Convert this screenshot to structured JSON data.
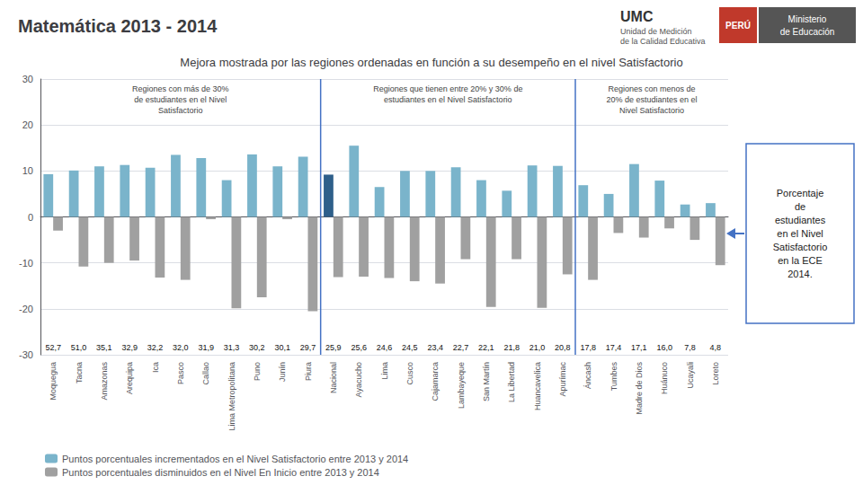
{
  "chart_data": {
    "type": "bar",
    "title": "Matemática 2013 - 2014",
    "subtitle": "Mejora mostrada por las regiones ordenadas en función a su desempeño en el nivel Satisfactorio",
    "header_texts": [
      "UMC",
      "Unidad de Medición\nde la Calidad Educativa",
      "PERÚ",
      "Ministerio",
      "de Educación"
    ],
    "annotation": "Porcentaje\nde\nestudiantes\nen el Nivel\nSatisfactorio\nen la ECE\n2014.",
    "categories": [
      "Moquegua",
      "Tacna",
      "Amazonas",
      "Arequipa",
      "Ica",
      "Pasco",
      "Callao",
      "Lima Metropolitana",
      "Puno",
      "Junín",
      "Piura",
      "Nacional",
      "Ayacucho",
      "Lima",
      "Cusco",
      "Cajamarca",
      "Lambayeque",
      "San Martín",
      "La Libertad",
      "Huancavelica",
      "Apurímac",
      "Áncash",
      "Tumbes",
      "Madre de Dios",
      "Huánuco",
      "Ucayali",
      "Loreto"
    ],
    "series": [
      {
        "name": "Puntos porcentuales incrementados en el Nivel Satisfactorio entre 2013 y 2014",
        "color": "#7ab4cb",
        "colors": [
          "#7ab4cb",
          "#7ab4cb",
          "#7ab4cb",
          "#7ab4cb",
          "#7ab4cb",
          "#7ab4cb",
          "#7ab4cb",
          "#7ab4cb",
          "#7ab4cb",
          "#7ab4cb",
          "#7ab4cb",
          "#2e5f8a",
          "#7ab4cb",
          "#7ab4cb",
          "#7ab4cb",
          "#7ab4cb",
          "#7ab4cb",
          "#7ab4cb",
          "#7ab4cb",
          "#7ab4cb",
          "#7ab4cb",
          "#7ab4cb",
          "#7ab4cb",
          "#7ab4cb",
          "#7ab4cb",
          "#7ab4cb",
          "#7ab4cb"
        ],
        "values": [
          9.3,
          10.1,
          11.0,
          11.3,
          10.7,
          13.5,
          12.8,
          8.0,
          13.6,
          11.0,
          13.1,
          9.2,
          15.5,
          6.5,
          10.0,
          10.0,
          10.8,
          8.0,
          5.7,
          11.2,
          11.1,
          6.9,
          5.0,
          11.5,
          7.9,
          2.7,
          3.0
        ]
      },
      {
        "name": "Puntos porcentuales disminuidos en el Nivel En Inicio entre 2013 y 2014",
        "color": "#a0a0a0",
        "values": [
          -3.0,
          -10.8,
          -10.0,
          -9.5,
          -13.2,
          -13.7,
          -0.5,
          -19.9,
          -17.5,
          -0.5,
          -20.5,
          -13.1,
          -13.0,
          -13.3,
          -14.0,
          -14.5,
          -9.2,
          -19.6,
          -9.2,
          -19.8,
          -12.5,
          -13.7,
          -3.5,
          -4.5,
          -2.5,
          -5.0,
          -10.5
        ]
      }
    ],
    "satisfactorio_labels": [
      "52,7",
      "51,0",
      "35,1",
      "32,9",
      "32,2",
      "32,0",
      "31,9",
      "31,3",
      "30,2",
      "30,1",
      "29,7",
      "25,9",
      "25,6",
      "24,6",
      "24,5",
      "23,4",
      "22,7",
      "22,1",
      "21,8",
      "21,0",
      "20,8",
      "17,8",
      "17,4",
      "17,1",
      "16,0",
      "7,8",
      "4,8"
    ],
    "groups": [
      {
        "label": "Regiones con más de 30%\nde estudiantes en el Nivel\nSatisfactorio",
        "from": "Moquegua",
        "to": "Piura"
      },
      {
        "label": "Regiones que tienen entre 20% y 30% de\nestudiantes en el Nivel Satisfactorio",
        "from": "Nacional",
        "to": "Apurímac"
      },
      {
        "label": "Regiones con menos de\n20% de estudiantes en el\nNivel Satisfactorio",
        "from": "Áncash",
        "to": "Loreto"
      }
    ],
    "ylim": [
      -30,
      30
    ],
    "yticks": [
      -30,
      -20,
      -10,
      0,
      10,
      20,
      30
    ],
    "grid": true,
    "legend": "bottom"
  }
}
